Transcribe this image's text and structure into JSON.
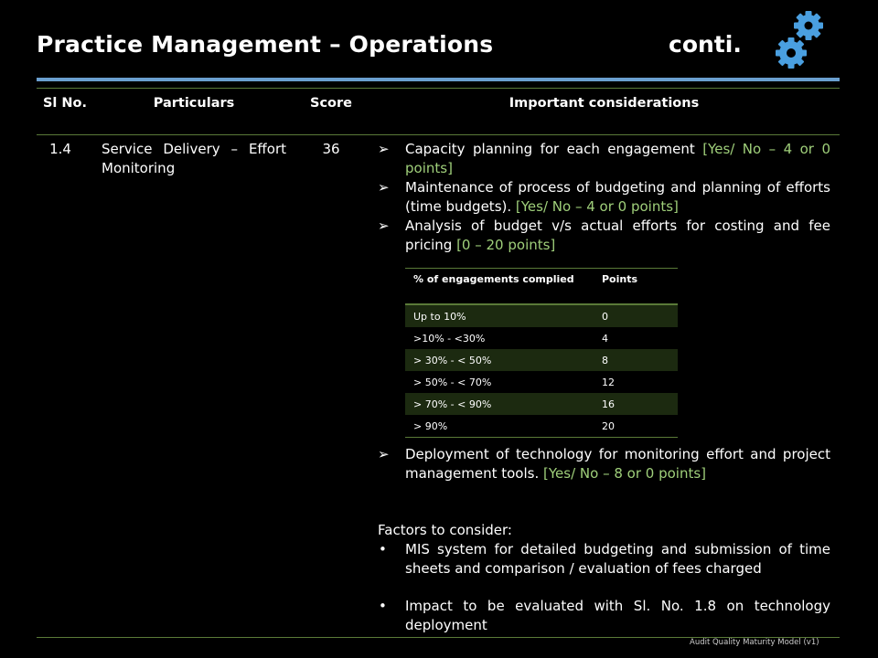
{
  "slide": {
    "title": "Practice Management – Operations",
    "continuation": "conti.",
    "footer": "Audit Quality Maturity Model (v1)"
  },
  "table": {
    "headers": {
      "sl_no": "Sl No.",
      "particulars": "Particulars",
      "score": "Score",
      "considerations": "Important considerations"
    },
    "row": {
      "sl_no": "1.4",
      "particulars": "Service Delivery – Effort Monitoring",
      "score": "36"
    }
  },
  "considerations": [
    {
      "text": "Capacity planning for each engagement ",
      "points": "[Yes/ No – 4 or 0 points]"
    },
    {
      "text": "Maintenance of process of budgeting and planning of efforts (time budgets). ",
      "points": "[Yes/ No – 4 or 0 points]"
    },
    {
      "text": "Analysis of budget v/s actual efforts for costing and fee pricing ",
      "points": "[0 – 20 points]"
    },
    {
      "text": "Deployment of technology for monitoring effort and project management tools. ",
      "points": "[Yes/ No – 8 or 0 points]"
    }
  ],
  "points_table": {
    "headers": [
      "% of engagements complied",
      "Points"
    ],
    "rows": [
      [
        "Up to 10%",
        "0"
      ],
      [
        ">10% - <30%",
        "4"
      ],
      [
        "> 30% - < 50%",
        "8"
      ],
      [
        "> 50% - < 70%",
        "12"
      ],
      [
        "> 70% - < 90%",
        "16"
      ],
      [
        "> 90%",
        "20"
      ]
    ]
  },
  "factors": {
    "heading": "Factors to consider:",
    "items": [
      "MIS system for detailed budgeting and submission of time sheets and comparison / evaluation of fees charged",
      "Impact to be evaluated with Sl. No. 1.8 on technology deployment"
    ]
  },
  "markers": {
    "arrow": "➢",
    "bullet": "•"
  },
  "colors": {
    "background": "#000000",
    "title_rule": "#6a9fcf",
    "table_rule": "#5a7a38",
    "points_text": "#9fcf7a",
    "row_shade": "#1c2a10",
    "gear": "#4a9fe0"
  },
  "icons": {
    "gears": "gears-icon"
  }
}
